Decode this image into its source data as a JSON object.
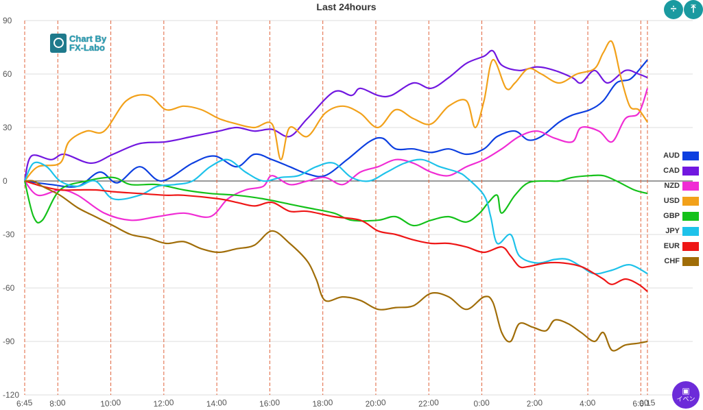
{
  "chart_data": {
    "type": "line",
    "title": "Last 24hours",
    "ylim": [
      -120,
      90
    ],
    "yticks": [
      90,
      60,
      30,
      0,
      -30,
      -60,
      -90,
      -120
    ],
    "xlim": [
      0,
      1410
    ],
    "x_ticks": [
      {
        "t": 0,
        "label": "6:45"
      },
      {
        "t": 75,
        "label": "8:00"
      },
      {
        "t": 195,
        "label": "10:00"
      },
      {
        "t": 315,
        "label": "12:00"
      },
      {
        "t": 435,
        "label": "14:00"
      },
      {
        "t": 555,
        "label": "16:00"
      },
      {
        "t": 675,
        "label": "18:00"
      },
      {
        "t": 795,
        "label": "20:00"
      },
      {
        "t": 915,
        "label": "22:00"
      },
      {
        "t": 1035,
        "label": "0:00"
      },
      {
        "t": 1155,
        "label": "2:00"
      },
      {
        "t": 1275,
        "label": "4:00"
      },
      {
        "t": 1395,
        "label": "6:00"
      },
      {
        "t": 1410,
        "label": "6:15"
      }
    ],
    "x_note": "x values are minutes after 6:45",
    "legend_position": "right",
    "grid": {
      "horizontal": true,
      "vertical_dashed": true
    },
    "series": [
      {
        "name": "AUD",
        "color": "#0d3fe0",
        "points": [
          [
            0,
            0
          ],
          [
            60,
            -2
          ],
          [
            120,
            -3
          ],
          [
            170,
            5
          ],
          [
            210,
            -1
          ],
          [
            260,
            8
          ],
          [
            310,
            0
          ],
          [
            380,
            10
          ],
          [
            430,
            14
          ],
          [
            480,
            8
          ],
          [
            520,
            15
          ],
          [
            560,
            12
          ],
          [
            600,
            8
          ],
          [
            640,
            4
          ],
          [
            680,
            3
          ],
          [
            730,
            12
          ],
          [
            780,
            22
          ],
          [
            810,
            24
          ],
          [
            840,
            18
          ],
          [
            880,
            18
          ],
          [
            920,
            16
          ],
          [
            960,
            18
          ],
          [
            1000,
            15
          ],
          [
            1040,
            18
          ],
          [
            1070,
            25
          ],
          [
            1110,
            28
          ],
          [
            1140,
            23
          ],
          [
            1170,
            25
          ],
          [
            1210,
            33
          ],
          [
            1240,
            37
          ],
          [
            1280,
            40
          ],
          [
            1310,
            45
          ],
          [
            1340,
            55
          ],
          [
            1370,
            57
          ],
          [
            1390,
            62
          ],
          [
            1410,
            68
          ]
        ]
      },
      {
        "name": "CAD",
        "color": "#7117e0",
        "points": [
          [
            0,
            0
          ],
          [
            15,
            14
          ],
          [
            60,
            12
          ],
          [
            90,
            15
          ],
          [
            150,
            10
          ],
          [
            200,
            15
          ],
          [
            260,
            21
          ],
          [
            320,
            22
          ],
          [
            380,
            25
          ],
          [
            440,
            28
          ],
          [
            480,
            30
          ],
          [
            520,
            28
          ],
          [
            560,
            29
          ],
          [
            600,
            25
          ],
          [
            640,
            35
          ],
          [
            700,
            50
          ],
          [
            740,
            48
          ],
          [
            760,
            52
          ],
          [
            800,
            48
          ],
          [
            830,
            48
          ],
          [
            880,
            55
          ],
          [
            920,
            52
          ],
          [
            960,
            58
          ],
          [
            1000,
            66
          ],
          [
            1040,
            70
          ],
          [
            1060,
            73
          ],
          [
            1080,
            65
          ],
          [
            1120,
            62
          ],
          [
            1160,
            64
          ],
          [
            1200,
            62
          ],
          [
            1240,
            58
          ],
          [
            1260,
            55
          ],
          [
            1290,
            62
          ],
          [
            1320,
            55
          ],
          [
            1360,
            62
          ],
          [
            1390,
            60
          ],
          [
            1410,
            58
          ]
        ]
      },
      {
        "name": "NZD",
        "color": "#f02cd4",
        "points": [
          [
            0,
            0
          ],
          [
            30,
            -8
          ],
          [
            80,
            -5
          ],
          [
            120,
            -8
          ],
          [
            180,
            -18
          ],
          [
            240,
            -22
          ],
          [
            300,
            -20
          ],
          [
            360,
            -18
          ],
          [
            420,
            -20
          ],
          [
            460,
            -10
          ],
          [
            500,
            -5
          ],
          [
            540,
            -3
          ],
          [
            560,
            3
          ],
          [
            600,
            -2
          ],
          [
            640,
            0
          ],
          [
            680,
            2
          ],
          [
            720,
            -2
          ],
          [
            760,
            5
          ],
          [
            800,
            8
          ],
          [
            840,
            12
          ],
          [
            880,
            10
          ],
          [
            920,
            5
          ],
          [
            960,
            3
          ],
          [
            1000,
            8
          ],
          [
            1040,
            12
          ],
          [
            1080,
            18
          ],
          [
            1120,
            25
          ],
          [
            1160,
            28
          ],
          [
            1200,
            24
          ],
          [
            1240,
            22
          ],
          [
            1260,
            30
          ],
          [
            1300,
            28
          ],
          [
            1330,
            22
          ],
          [
            1360,
            35
          ],
          [
            1390,
            38
          ],
          [
            1410,
            52
          ]
        ]
      },
      {
        "name": "USD",
        "color": "#f2a11a",
        "points": [
          [
            0,
            0
          ],
          [
            30,
            8
          ],
          [
            80,
            10
          ],
          [
            100,
            22
          ],
          [
            140,
            28
          ],
          [
            180,
            28
          ],
          [
            230,
            45
          ],
          [
            280,
            48
          ],
          [
            320,
            40
          ],
          [
            360,
            42
          ],
          [
            400,
            40
          ],
          [
            440,
            35
          ],
          [
            480,
            32
          ],
          [
            520,
            30
          ],
          [
            560,
            32
          ],
          [
            580,
            12
          ],
          [
            600,
            30
          ],
          [
            640,
            25
          ],
          [
            680,
            38
          ],
          [
            720,
            42
          ],
          [
            760,
            38
          ],
          [
            800,
            30
          ],
          [
            840,
            40
          ],
          [
            880,
            35
          ],
          [
            920,
            32
          ],
          [
            960,
            42
          ],
          [
            1000,
            45
          ],
          [
            1020,
            30
          ],
          [
            1040,
            45
          ],
          [
            1060,
            68
          ],
          [
            1090,
            52
          ],
          [
            1110,
            55
          ],
          [
            1140,
            63
          ],
          [
            1170,
            60
          ],
          [
            1210,
            55
          ],
          [
            1250,
            60
          ],
          [
            1290,
            63
          ],
          [
            1310,
            72
          ],
          [
            1330,
            78
          ],
          [
            1350,
            58
          ],
          [
            1370,
            42
          ],
          [
            1390,
            40
          ],
          [
            1410,
            33
          ]
        ]
      },
      {
        "name": "GBP",
        "color": "#14c11a",
        "points": [
          [
            0,
            0
          ],
          [
            20,
            -20
          ],
          [
            40,
            -22
          ],
          [
            80,
            -5
          ],
          [
            140,
            0
          ],
          [
            200,
            2
          ],
          [
            240,
            -2
          ],
          [
            300,
            -2
          ],
          [
            360,
            -5
          ],
          [
            420,
            -7
          ],
          [
            480,
            -8
          ],
          [
            540,
            -10
          ],
          [
            600,
            -13
          ],
          [
            640,
            -15
          ],
          [
            700,
            -18
          ],
          [
            740,
            -22
          ],
          [
            800,
            -22
          ],
          [
            840,
            -20
          ],
          [
            880,
            -25
          ],
          [
            920,
            -22
          ],
          [
            960,
            -20
          ],
          [
            1000,
            -23
          ],
          [
            1030,
            -18
          ],
          [
            1050,
            -12
          ],
          [
            1070,
            -8
          ],
          [
            1080,
            -18
          ],
          [
            1110,
            -8
          ],
          [
            1140,
            -1
          ],
          [
            1180,
            0
          ],
          [
            1210,
            0
          ],
          [
            1240,
            2
          ],
          [
            1280,
            3
          ],
          [
            1310,
            3
          ],
          [
            1340,
            0
          ],
          [
            1380,
            -5
          ],
          [
            1410,
            -7
          ]
        ]
      },
      {
        "name": "JPY",
        "color": "#1ec2ea",
        "points": [
          [
            0,
            0
          ],
          [
            20,
            10
          ],
          [
            50,
            8
          ],
          [
            80,
            0
          ],
          [
            120,
            -3
          ],
          [
            160,
            0
          ],
          [
            200,
            -10
          ],
          [
            260,
            -8
          ],
          [
            300,
            -3
          ],
          [
            340,
            -2
          ],
          [
            380,
            0
          ],
          [
            420,
            8
          ],
          [
            460,
            12
          ],
          [
            500,
            5
          ],
          [
            540,
            0
          ],
          [
            580,
            2
          ],
          [
            620,
            3
          ],
          [
            660,
            8
          ],
          [
            700,
            10
          ],
          [
            740,
            2
          ],
          [
            780,
            0
          ],
          [
            820,
            5
          ],
          [
            860,
            10
          ],
          [
            900,
            12
          ],
          [
            940,
            8
          ],
          [
            980,
            5
          ],
          [
            1000,
            2
          ],
          [
            1040,
            -8
          ],
          [
            1055,
            -20
          ],
          [
            1070,
            -35
          ],
          [
            1100,
            -30
          ],
          [
            1120,
            -42
          ],
          [
            1160,
            -46
          ],
          [
            1200,
            -44
          ],
          [
            1230,
            -44
          ],
          [
            1260,
            -48
          ],
          [
            1290,
            -52
          ],
          [
            1330,
            -50
          ],
          [
            1370,
            -47
          ],
          [
            1410,
            -52
          ]
        ]
      },
      {
        "name": "EUR",
        "color": "#ee1616",
        "points": [
          [
            0,
            0
          ],
          [
            40,
            -3
          ],
          [
            80,
            -5
          ],
          [
            120,
            -5
          ],
          [
            160,
            -5
          ],
          [
            200,
            -6
          ],
          [
            260,
            -7
          ],
          [
            320,
            -8
          ],
          [
            360,
            -8
          ],
          [
            440,
            -10
          ],
          [
            480,
            -12
          ],
          [
            520,
            -14
          ],
          [
            560,
            -12
          ],
          [
            600,
            -17
          ],
          [
            640,
            -17
          ],
          [
            700,
            -20
          ],
          [
            760,
            -22
          ],
          [
            800,
            -28
          ],
          [
            840,
            -30
          ],
          [
            880,
            -33
          ],
          [
            920,
            -35
          ],
          [
            960,
            -35
          ],
          [
            1000,
            -37
          ],
          [
            1040,
            -40
          ],
          [
            1080,
            -37
          ],
          [
            1100,
            -42
          ],
          [
            1120,
            -48
          ],
          [
            1140,
            -48
          ],
          [
            1180,
            -46
          ],
          [
            1220,
            -46
          ],
          [
            1260,
            -48
          ],
          [
            1290,
            -52
          ],
          [
            1310,
            -55
          ],
          [
            1330,
            -58
          ],
          [
            1360,
            -55
          ],
          [
            1390,
            -58
          ],
          [
            1410,
            -62
          ]
        ]
      },
      {
        "name": "CHF",
        "color": "#a06d08",
        "points": [
          [
            0,
            0
          ],
          [
            20,
            0
          ],
          [
            40,
            -3
          ],
          [
            80,
            -8
          ],
          [
            120,
            -15
          ],
          [
            160,
            -20
          ],
          [
            200,
            -25
          ],
          [
            240,
            -30
          ],
          [
            280,
            -32
          ],
          [
            320,
            -35
          ],
          [
            360,
            -34
          ],
          [
            400,
            -38
          ],
          [
            440,
            -40
          ],
          [
            480,
            -38
          ],
          [
            520,
            -36
          ],
          [
            560,
            -28
          ],
          [
            600,
            -35
          ],
          [
            640,
            -45
          ],
          [
            660,
            -55
          ],
          [
            680,
            -67
          ],
          [
            720,
            -65
          ],
          [
            760,
            -67
          ],
          [
            800,
            -72
          ],
          [
            840,
            -71
          ],
          [
            880,
            -70
          ],
          [
            920,
            -63
          ],
          [
            960,
            -65
          ],
          [
            1000,
            -72
          ],
          [
            1040,
            -65
          ],
          [
            1060,
            -68
          ],
          [
            1080,
            -85
          ],
          [
            1100,
            -90
          ],
          [
            1120,
            -80
          ],
          [
            1150,
            -82
          ],
          [
            1180,
            -84
          ],
          [
            1200,
            -78
          ],
          [
            1230,
            -80
          ],
          [
            1260,
            -85
          ],
          [
            1290,
            -90
          ],
          [
            1310,
            -85
          ],
          [
            1330,
            -95
          ],
          [
            1360,
            -92
          ],
          [
            1390,
            -91
          ],
          [
            1410,
            -90
          ]
        ]
      }
    ]
  },
  "logo": {
    "line1": "Chart By",
    "line2": "FX-Labo"
  },
  "controls": {
    "btn1": "÷",
    "btn2": "⤒",
    "event_label": "イベン",
    "event_icon": "▣"
  }
}
